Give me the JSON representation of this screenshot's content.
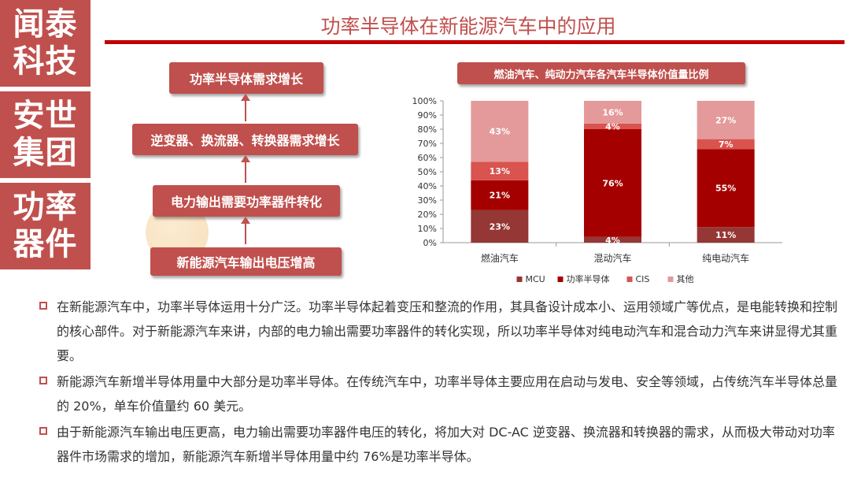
{
  "sidebar": [
    {
      "line1": "闻泰",
      "line2": "科技"
    },
    {
      "line1": "安世",
      "line2": "集团"
    },
    {
      "line1": "功率",
      "line2": "器件"
    }
  ],
  "title": "功率半导体在新能源汽车中的应用",
  "flow": [
    "功率半导体需求增长",
    "逆变器、换流器、转换器需求增长",
    "电力输出需要功率器件转化",
    "新能源汽车输出电压增高"
  ],
  "chart_title": "燃油汽车、纯动力汽车各汽车半导体价值量比例",
  "chart_data": {
    "type": "bar",
    "stacked": true,
    "categories": [
      "燃油汽车",
      "混动汽车",
      "纯电动汽车"
    ],
    "series": [
      {
        "name": "MCU",
        "values": [
          23,
          4,
          11
        ],
        "labels": [
          "23%",
          "4%",
          "11%"
        ],
        "color": "#953735"
      },
      {
        "name": "功率半导体",
        "values": [
          21,
          76,
          55
        ],
        "labels": [
          "21%",
          "76%",
          "55%"
        ],
        "color": "#a50000"
      },
      {
        "name": "CIS",
        "values": [
          13,
          4,
          7
        ],
        "labels": [
          "13%",
          "4%",
          "7%"
        ],
        "color": "#d9534f"
      },
      {
        "name": "其他",
        "values": [
          43,
          16,
          27
        ],
        "labels": [
          "43%",
          "16%",
          "27%"
        ],
        "color": "#e49a9a"
      }
    ],
    "ylim": [
      0,
      100
    ],
    "yticks": [
      "0%",
      "10%",
      "20%",
      "30%",
      "40%",
      "50%",
      "60%",
      "70%",
      "80%",
      "90%",
      "100%"
    ],
    "legend_position": "bottom",
    "grid": false
  },
  "bullets": [
    "在新能源汽车中，功率半导体运用十分广泛。功率半导体起着变压和整流的作用，其具备设计成本小、运用领域广等优点，是电能转换和控制的核心部件。对于新能源汽车来讲，内部的电力输出需要功率器件的转化实现，所以功率半导体对纯电动汽车和混合动力汽车来讲显得尤其重要。",
    "新能源汽车新增半导体用量中大部分是功率半导体。在传统汽车中，功率半导体主要应用在启动与发电、安全等领域，占传统汽车半导体总量的  20%，单车价值量约  60 美元。",
    "由于新能源汽车输出电压更高，电力输出需要功率器件电压的转化，将加大对  DC-AC 逆变器、换流器和转换器的需求，从而极大带动对功率器件市场需求的增加，新能源汽车新增半导体用量中约  76%是功率半导体。"
  ]
}
